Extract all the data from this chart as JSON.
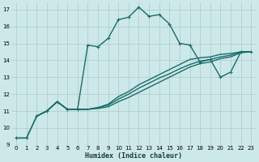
{
  "xlabel": "Humidex (Indice chaleur)",
  "bg_color": "#cde8e8",
  "grid_color": "#b0d0d0",
  "line_color": "#1a6b6b",
  "xlim": [
    -0.5,
    23.5
  ],
  "ylim": [
    9,
    17.4
  ],
  "xticks": [
    0,
    1,
    2,
    3,
    4,
    5,
    6,
    7,
    8,
    9,
    10,
    11,
    12,
    13,
    14,
    15,
    16,
    17,
    18,
    19,
    20,
    21,
    22,
    23
  ],
  "yticks": [
    9,
    10,
    11,
    12,
    13,
    14,
    15,
    16,
    17
  ],
  "series1_x": [
    0,
    1,
    2,
    3,
    4,
    5,
    6,
    7,
    8,
    9,
    10,
    11,
    12,
    13,
    14,
    15,
    16,
    17,
    18,
    19,
    20,
    21,
    22,
    23
  ],
  "series1_y": [
    9.4,
    9.4,
    10.7,
    11.0,
    11.55,
    11.1,
    11.1,
    14.9,
    14.8,
    15.3,
    16.4,
    16.55,
    17.15,
    16.6,
    16.7,
    16.15,
    15.0,
    14.9,
    13.9,
    14.05,
    13.0,
    13.3,
    14.5,
    14.5
  ],
  "series2_x": [
    0,
    1,
    2,
    3,
    4,
    5,
    6,
    7,
    8,
    9,
    10,
    11,
    12,
    13,
    14,
    15,
    16,
    17,
    18,
    19,
    20,
    21,
    22,
    23
  ],
  "series2_y": [
    9.4,
    9.4,
    10.7,
    11.0,
    11.55,
    11.1,
    11.1,
    11.1,
    11.2,
    11.35,
    11.7,
    12.0,
    12.35,
    12.65,
    12.95,
    13.2,
    13.5,
    13.75,
    13.95,
    14.05,
    14.2,
    14.3,
    14.5,
    14.5
  ],
  "series3_x": [
    2,
    3,
    4,
    5,
    6,
    7,
    8,
    9,
    10,
    11,
    12,
    13,
    14,
    15,
    16,
    17,
    18,
    19,
    20,
    21,
    22,
    23
  ],
  "series3_y": [
    10.7,
    11.0,
    11.55,
    11.1,
    11.1,
    11.1,
    11.2,
    11.4,
    11.85,
    12.15,
    12.55,
    12.85,
    13.15,
    13.45,
    13.75,
    14.05,
    14.15,
    14.2,
    14.35,
    14.4,
    14.5,
    14.5
  ],
  "series4_x": [
    2,
    3,
    4,
    5,
    6,
    7,
    8,
    9,
    10,
    11,
    12,
    13,
    14,
    15,
    16,
    17,
    18,
    19,
    20,
    21,
    22,
    23
  ],
  "series4_y": [
    10.7,
    11.0,
    11.55,
    11.1,
    11.1,
    11.1,
    11.15,
    11.25,
    11.55,
    11.8,
    12.1,
    12.4,
    12.7,
    13.0,
    13.3,
    13.6,
    13.8,
    13.9,
    14.1,
    14.2,
    14.45,
    14.5
  ],
  "linewidth": 1.0,
  "markersize": 2.0
}
